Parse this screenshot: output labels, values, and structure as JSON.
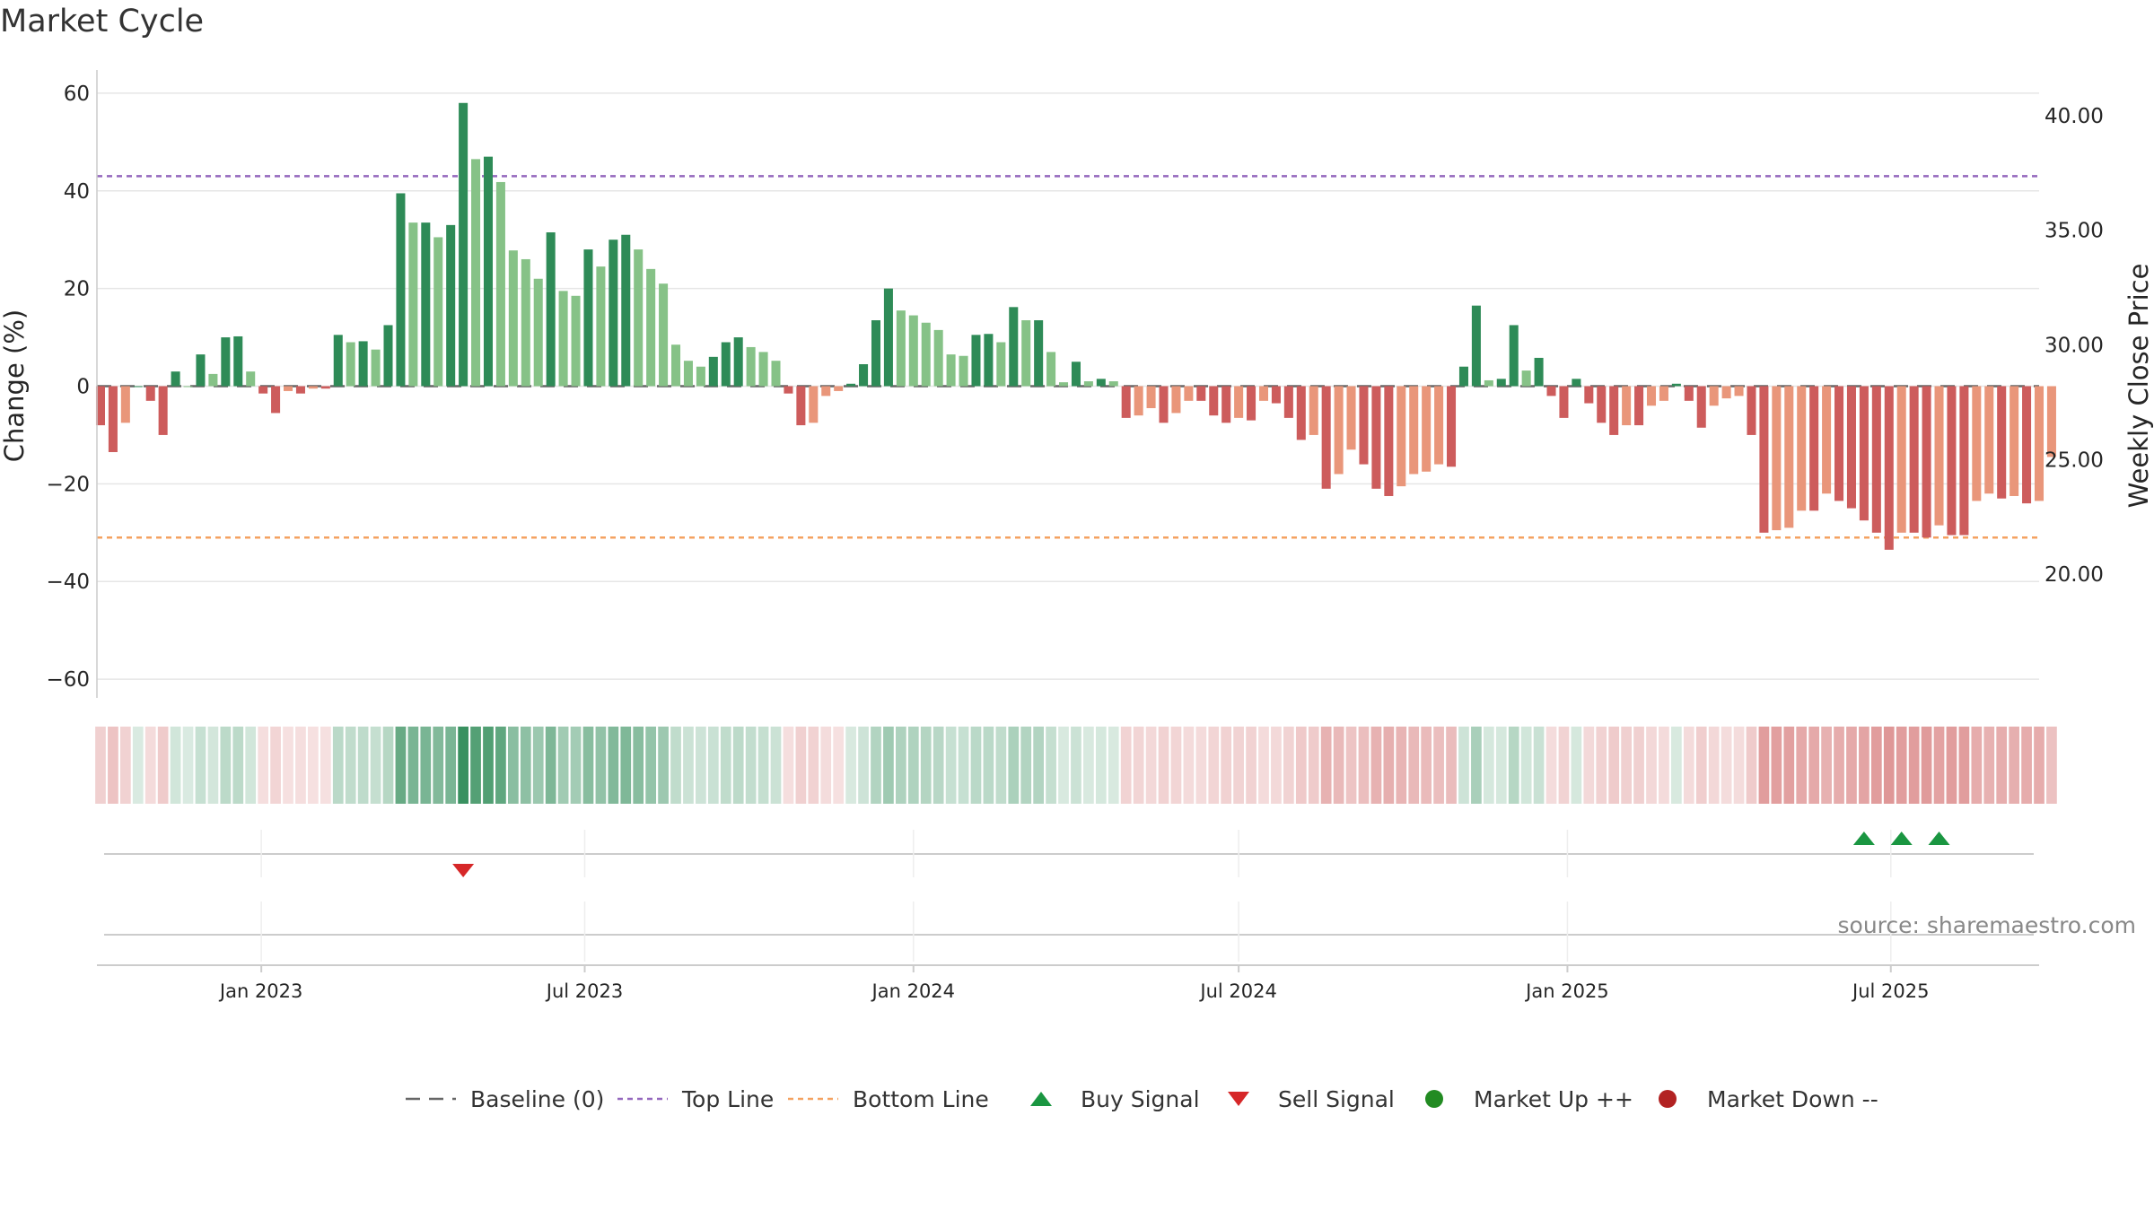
{
  "chart_data": {
    "type": "bar",
    "title": "Market Cycle",
    "ylabel": "Change (%)",
    "ylabel_right": "Weekly Close Price",
    "ylim": [
      -62,
      62
    ],
    "ylim_right": [
      15.0,
      41.4
    ],
    "yticks": [
      60,
      40,
      20,
      0,
      -20,
      -40,
      -60
    ],
    "yticks_right": [
      "40.00",
      "35.00",
      "30.00",
      "25.00",
      "20.00"
    ],
    "x_start": "2022-10-03",
    "x_step_days": 7,
    "xlim": [
      "2022-10-01",
      "2025-09-22"
    ],
    "x_ticks": [
      {
        "date": "2023-01-01",
        "label": "Jan 2023"
      },
      {
        "date": "2023-07-01",
        "label": "Jul 2023"
      },
      {
        "date": "2024-01-01",
        "label": "Jan 2024"
      },
      {
        "date": "2024-07-01",
        "label": "Jul 2024"
      },
      {
        "date": "2025-01-01",
        "label": "Jan 2025"
      },
      {
        "date": "2025-07-01",
        "label": "Jul 2025"
      }
    ],
    "reference_lines": {
      "baseline": 0,
      "top_line": 43,
      "bottom_line": -31
    },
    "values": [
      -8,
      -13.5,
      -7.5,
      0,
      -3,
      -10,
      3,
      0,
      6.5,
      2.5,
      10,
      10.2,
      3,
      -1.5,
      -5.5,
      -1,
      -1.5,
      -0.5,
      -0.5,
      10.5,
      9,
      9.2,
      7.5,
      12.5,
      39.5,
      33.5,
      33.5,
      30.5,
      33,
      58,
      46.5,
      47,
      41.8,
      27.8,
      26,
      22,
      31.5,
      19.5,
      18.5,
      28,
      24.5,
      30,
      31,
      28,
      24,
      21,
      8.5,
      5.2,
      4,
      6,
      9,
      10,
      8,
      7,
      5.2,
      -1.5,
      -8,
      -7.5,
      -2,
      -1,
      0.5,
      4.5,
      13.5,
      20,
      15.5,
      14.5,
      13,
      11.5,
      6.5,
      6.2,
      10.5,
      10.7,
      9,
      16.2,
      13.5,
      13.5,
      7,
      0.8,
      5,
      1,
      1.5,
      1,
      -6.5,
      -6,
      -4.5,
      -7.5,
      -5.5,
      -3,
      -3,
      -6,
      -7.5,
      -6.5,
      -7,
      -3,
      -3.5,
      -6.5,
      -11,
      -10,
      -21,
      -18,
      -13,
      -16,
      -21,
      -22.5,
      -20.5,
      -18,
      -17.5,
      -16,
      -16.5,
      4,
      16.5,
      1.2,
      1.5,
      12.5,
      3.2,
      5.8,
      -2,
      -6.5,
      1.5,
      -3.5,
      -7.5,
      -10,
      -8,
      -8,
      -4,
      -3,
      0.5,
      -3,
      -8.5,
      -4,
      -2.5,
      -2,
      -10,
      -30,
      -29.5,
      -29,
      -25.5,
      -25.5,
      -22,
      -23.5,
      -25,
      -27.5,
      -30,
      -33.5,
      -30,
      -30,
      -31,
      -28.5,
      -30.5,
      -30.5,
      -23.5,
      -22,
      -23,
      -22.5,
      -24,
      -23.5,
      -14.5
    ],
    "momentum_strip_values": [
      -8,
      -13.5,
      -7.5,
      0,
      -3,
      -10,
      3,
      0,
      6.5,
      2.5,
      10,
      10.2,
      3,
      -1.5,
      -5.5,
      -1,
      -1.5,
      -0.5,
      -0.5,
      10.5,
      9,
      9.2,
      7.5,
      12.5,
      39.5,
      33.5,
      33.5,
      30.5,
      33,
      58,
      46.5,
      47,
      41.8,
      27.8,
      26,
      22,
      31.5,
      19.5,
      18.5,
      28,
      24.5,
      30,
      31,
      28,
      24,
      21,
      8.5,
      5.2,
      4,
      6,
      9,
      10,
      8,
      7,
      5.2,
      -1.5,
      -8,
      -7.5,
      -2,
      -1,
      0.5,
      4.5,
      13.5,
      20,
      15.5,
      14.5,
      13,
      11.5,
      6.5,
      6.2,
      10.5,
      10.7,
      9,
      16.2,
      13.5,
      13.5,
      7,
      0.8,
      5,
      1,
      1.5,
      1,
      -6.5,
      -6,
      -4.5,
      -7.5,
      -5.5,
      -3,
      -3,
      -6,
      -7.5,
      -6.5,
      -7,
      -3,
      -3.5,
      -6.5,
      -11,
      -10,
      -21,
      -18,
      -13,
      -16,
      -21,
      -22.5,
      -20.5,
      -18,
      -17.5,
      -16,
      -16.5,
      4,
      16.5,
      1.2,
      1.5,
      12.5,
      3.2,
      5.8,
      -2,
      -6.5,
      1.5,
      -3.5,
      -7.5,
      -10,
      -8,
      -8,
      -4,
      -3,
      0.5,
      -3,
      -8.5,
      -4,
      -2.5,
      -2,
      -10,
      -30,
      -29.5,
      -29,
      -25.5,
      -25.5,
      -22,
      -23.5,
      -25,
      -27.5,
      -30,
      -33.5,
      -30,
      -30,
      -31,
      -28.5,
      -30.5,
      -30.5,
      -23.5,
      -22,
      -23,
      -22.5,
      -24,
      -23.5,
      -14.5
    ],
    "signals": [
      {
        "type": "sell",
        "date": "2023-04-24"
      },
      {
        "type": "buy",
        "date": "2025-06-16"
      },
      {
        "type": "buy",
        "date": "2025-07-07"
      },
      {
        "type": "buy",
        "date": "2025-07-28"
      }
    ],
    "legend": {
      "placement": "bottom-center",
      "entries": [
        {
          "key": "baseline",
          "label": "Baseline (0)"
        },
        {
          "key": "top",
          "label": "Top Line"
        },
        {
          "key": "bottom",
          "label": "Bottom Line"
        },
        {
          "key": "buy",
          "label": "Buy Signal"
        },
        {
          "key": "sell",
          "label": "Sell Signal"
        },
        {
          "key": "up",
          "label": "Market Up ++"
        },
        {
          "key": "down",
          "label": "Market Down --"
        }
      ]
    },
    "source": "source: sharemaestro.com",
    "grid": true
  },
  "colors": {
    "up_strong": "#2e8b57",
    "up_light": "#86c287",
    "down_strong": "#cd5c5c",
    "down_light": "#e9967a",
    "top_line": "#9467bd",
    "bottom_line": "#f4a261",
    "baseline": "#666666",
    "buy": "#1a9641",
    "sell": "#d62728",
    "market_up": "#228b22",
    "market_down": "#b22222"
  }
}
